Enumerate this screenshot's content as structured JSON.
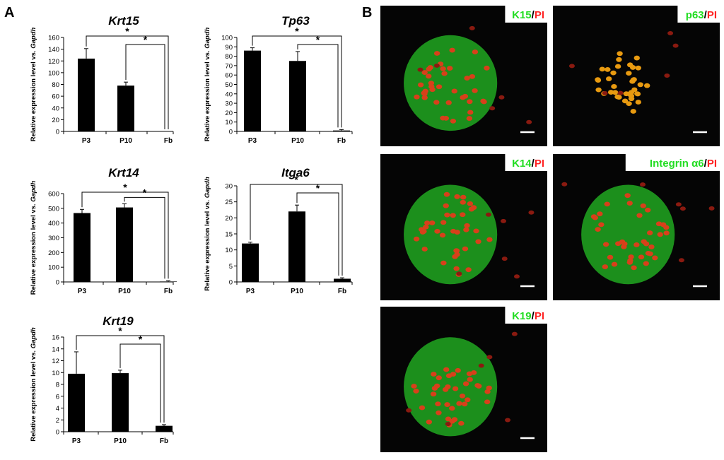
{
  "panels": {
    "a_label": "A",
    "b_label": "B"
  },
  "ylabel": {
    "prefix": "Relative expression level vs. ",
    "gene": "Gapdh"
  },
  "chart_data": [
    {
      "type": "bar",
      "title": "Krt15",
      "categories": [
        "P3",
        "P10",
        "Fb"
      ],
      "values": [
        124,
        78,
        0
      ],
      "errors": [
        17,
        6,
        0
      ],
      "ylim": [
        0,
        160
      ],
      "yticks": [
        0,
        20,
        40,
        60,
        80,
        100,
        120,
        140,
        160
      ],
      "significance": [
        {
          "from": "P3",
          "to": "Fb",
          "label": "*"
        },
        {
          "from": "P10",
          "to": "Fb",
          "label": "*"
        }
      ]
    },
    {
      "type": "bar",
      "title": "Tp63",
      "categories": [
        "P3",
        "P10",
        "Fb"
      ],
      "values": [
        86,
        75,
        1
      ],
      "errors": [
        3,
        10,
        1
      ],
      "ylim": [
        0,
        100
      ],
      "yticks": [
        0,
        10,
        20,
        30,
        40,
        50,
        60,
        70,
        80,
        90,
        100
      ],
      "significance": [
        {
          "from": "P3",
          "to": "Fb",
          "label": "*"
        },
        {
          "from": "P10",
          "to": "Fb",
          "label": "*"
        }
      ]
    },
    {
      "type": "bar",
      "title": "Krt14",
      "categories": [
        "P3",
        "P10",
        "Fb"
      ],
      "values": [
        468,
        506,
        3
      ],
      "errors": [
        25,
        25,
        5
      ],
      "ylim": [
        0,
        600
      ],
      "yticks": [
        0,
        100,
        200,
        300,
        400,
        500,
        600
      ],
      "significance": [
        {
          "from": "P3",
          "to": "Fb",
          "label": "*"
        },
        {
          "from": "P10",
          "to": "Fb",
          "label": "*"
        }
      ]
    },
    {
      "type": "bar",
      "title": "Itga6",
      "categories": [
        "P3",
        "P10",
        "Fb"
      ],
      "values": [
        12,
        22,
        1
      ],
      "errors": [
        0.4,
        2,
        0.3
      ],
      "ylim": [
        0,
        30
      ],
      "yticks": [
        0,
        5,
        10,
        15,
        20,
        25,
        30
      ],
      "significance": [
        {
          "from": "P3",
          "to": "Fb",
          "label": "*"
        },
        {
          "from": "P10",
          "to": "Fb",
          "label": "*"
        }
      ]
    },
    {
      "type": "bar",
      "title": "Krt19",
      "categories": [
        "P3",
        "P10",
        "Fb"
      ],
      "values": [
        9.8,
        9.9,
        1
      ],
      "errors": [
        3.7,
        0.5,
        0.2
      ],
      "ylim": [
        0,
        16
      ],
      "yticks": [
        0,
        2,
        4,
        6,
        8,
        10,
        12,
        14,
        16
      ],
      "significance": [
        {
          "from": "P3",
          "to": "Fb",
          "label": "*"
        },
        {
          "from": "P10",
          "to": "Fb",
          "label": "*"
        }
      ]
    }
  ],
  "micrographs": [
    {
      "marker": "K15",
      "stain": "PI",
      "separator": "/",
      "marker_color": "#22dd22",
      "stain_color": "#ff2222"
    },
    {
      "marker": "p63",
      "stain": "PI",
      "separator": "/",
      "marker_color": "#22dd22",
      "stain_color": "#ff2222"
    },
    {
      "marker": "K14",
      "stain": "PI",
      "separator": "/",
      "marker_color": "#22dd22",
      "stain_color": "#ff2222"
    },
    {
      "marker": "Integrin α6",
      "stain": "PI",
      "separator": "/",
      "marker_color": "#22dd22",
      "stain_color": "#ff2222"
    },
    {
      "marker": "K19",
      "stain": "PI",
      "separator": "/",
      "marker_color": "#22dd22",
      "stain_color": "#ff2222"
    }
  ]
}
